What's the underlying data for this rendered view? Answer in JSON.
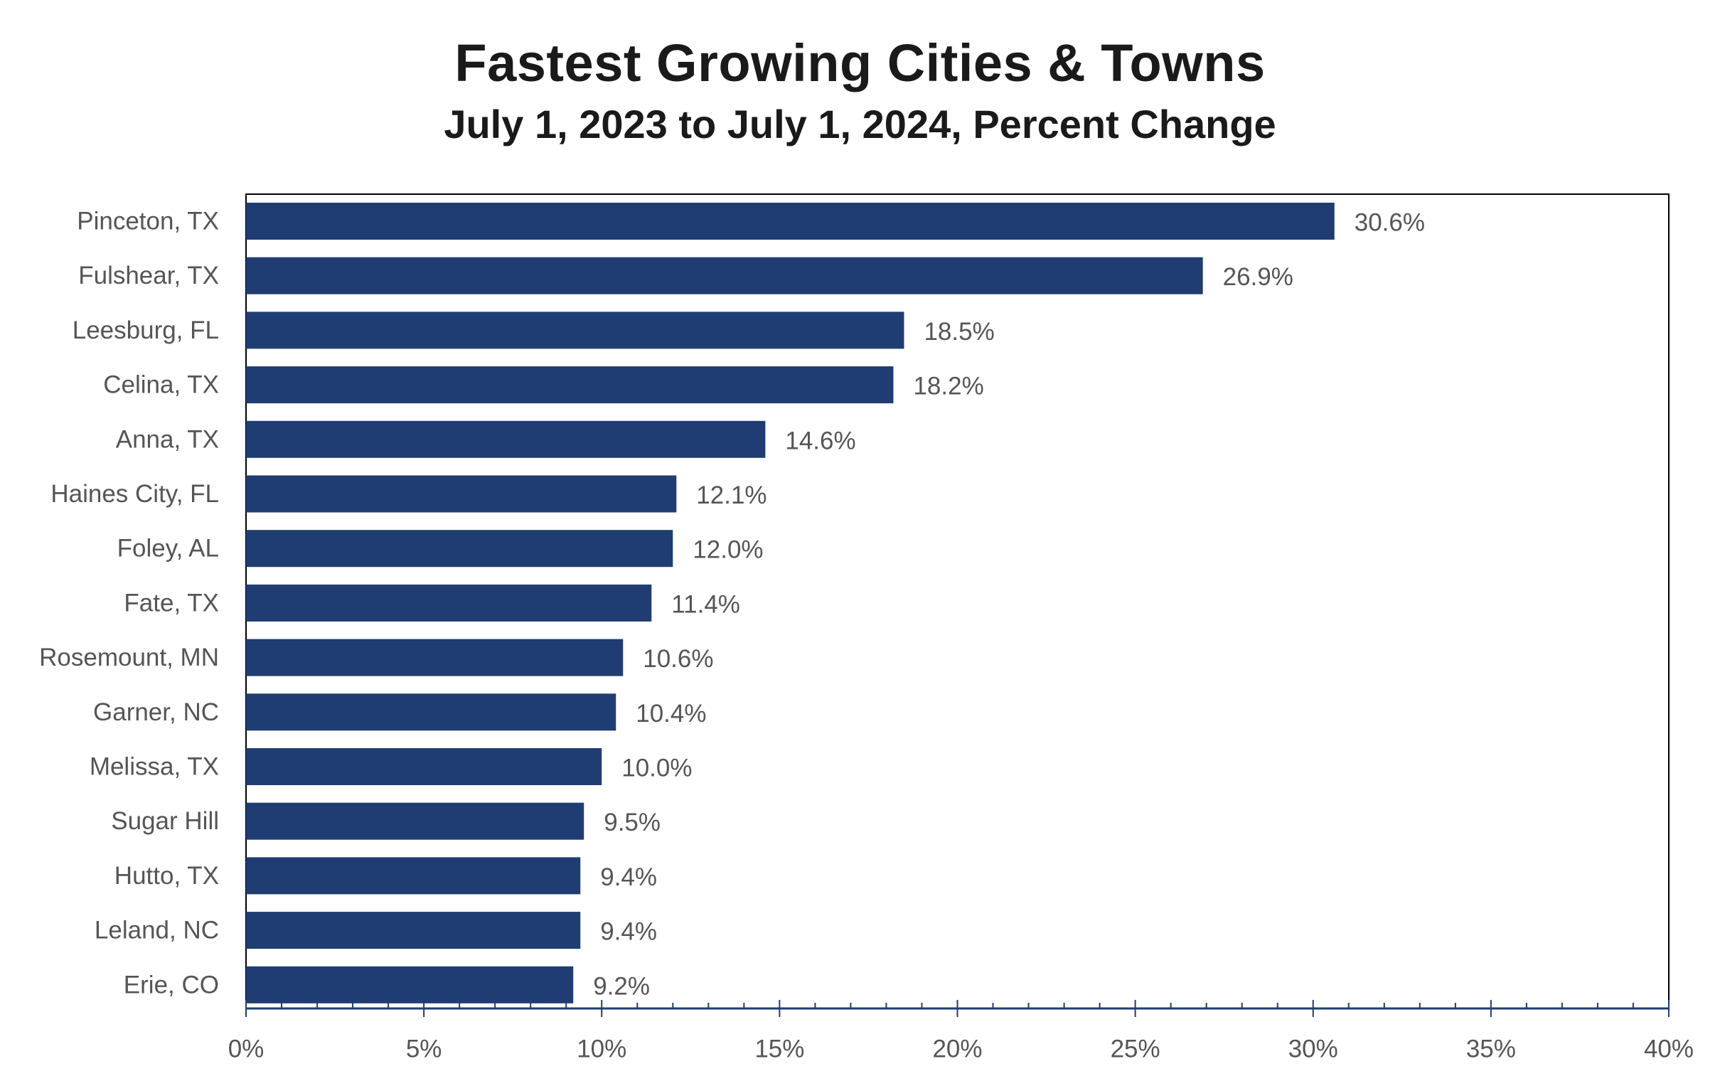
{
  "chart_data": {
    "type": "bar",
    "orientation": "horizontal",
    "title": "Fastest Growing Cities & Towns",
    "subtitle": "July 1, 2023 to July 1, 2024, Percent Change",
    "xlabel": "",
    "ylabel": "",
    "xlim": [
      0,
      40
    ],
    "x_ticks": [
      0,
      5,
      10,
      15,
      20,
      25,
      30,
      35,
      40
    ],
    "x_tick_labels": [
      "0%",
      "5%",
      "10%",
      "15%",
      "20%",
      "25%",
      "30%",
      "35%",
      "40%"
    ],
    "grid": false,
    "legend": "none",
    "categories": [
      "Pinceton, TX",
      "Fulshear, TX",
      "Leesburg, FL",
      "Celina, TX",
      "Anna, TX",
      "Haines City, FL",
      "Foley, AL",
      "Fate, TX",
      "Rosemount, MN",
      "Garner, NC",
      "Melissa, TX",
      "Sugar Hill",
      "Hutto, TX",
      "Leland, NC",
      "Erie, CO"
    ],
    "values": [
      30.6,
      26.9,
      18.5,
      18.2,
      14.6,
      12.1,
      12.0,
      11.4,
      10.6,
      10.4,
      10.0,
      9.5,
      9.4,
      9.4,
      9.2
    ],
    "value_labels": [
      "30.6%",
      "26.9%",
      "18.5%",
      "18.2%",
      "14.6%",
      "12.1%",
      "12.0%",
      "11.4%",
      "10.6%",
      "10.4%",
      "10.0%",
      "9.5%",
      "9.4%",
      "9.4%",
      "9.2%"
    ],
    "bar_color": "#1f3d72",
    "axis_color": "#1f3d72",
    "frame_color": "#000000"
  }
}
